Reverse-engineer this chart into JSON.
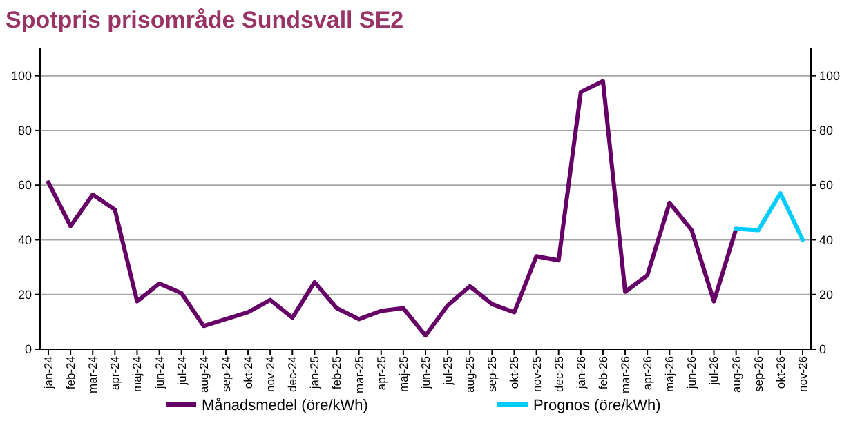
{
  "chart_data": {
    "type": "line",
    "title": "Spotpris prisområde Sundsvall SE2",
    "categories": [
      "jan-24",
      "feb-24",
      "mar-24",
      "apr-24",
      "maj-24",
      "jun-24",
      "jul-24",
      "aug-24",
      "sep-24",
      "okt-24",
      "nov-24",
      "dec-24",
      "jan-25",
      "feb-25",
      "mar-25",
      "apr-25",
      "maj-25",
      "jun-25",
      "jul-25",
      "aug-25",
      "sep-25",
      "okt-25",
      "nov-25",
      "dec-25",
      "jan-26",
      "feb-26",
      "mar-26",
      "apr-26",
      "maj-26",
      "jun-26",
      "jul-26",
      "aug-26",
      "sep-26",
      "okt-26",
      "nov-26"
    ],
    "series": [
      {
        "name": "Månadsmedel (öre/kWh)",
        "color": "#660066",
        "values": [
          61,
          45,
          56.5,
          51,
          17.5,
          24,
          20.5,
          8.5,
          11,
          13.5,
          18,
          11.5,
          24.5,
          15,
          11,
          14,
          15,
          5,
          16,
          23,
          16.5,
          13.5,
          34,
          32.5,
          94,
          98,
          21,
          27,
          53.5,
          43.5,
          17.5,
          44,
          null,
          null,
          null
        ]
      },
      {
        "name": "Prognos (öre/kWh)",
        "color": "#00ccff",
        "values": [
          null,
          null,
          null,
          null,
          null,
          null,
          null,
          null,
          null,
          null,
          null,
          null,
          null,
          null,
          null,
          null,
          null,
          null,
          null,
          null,
          null,
          null,
          null,
          null,
          null,
          null,
          null,
          null,
          null,
          null,
          null,
          44,
          43.5,
          57,
          40
        ]
      }
    ],
    "ylim": [
      0,
      110
    ],
    "yticks": [
      0,
      20,
      40,
      60,
      80,
      100
    ],
    "y2lim": [
      0,
      110
    ],
    "y2ticks": [
      0,
      20,
      40,
      60,
      80,
      100
    ],
    "grid": "y",
    "legend": "bottom",
    "marker": "none",
    "line_style": "solid"
  }
}
